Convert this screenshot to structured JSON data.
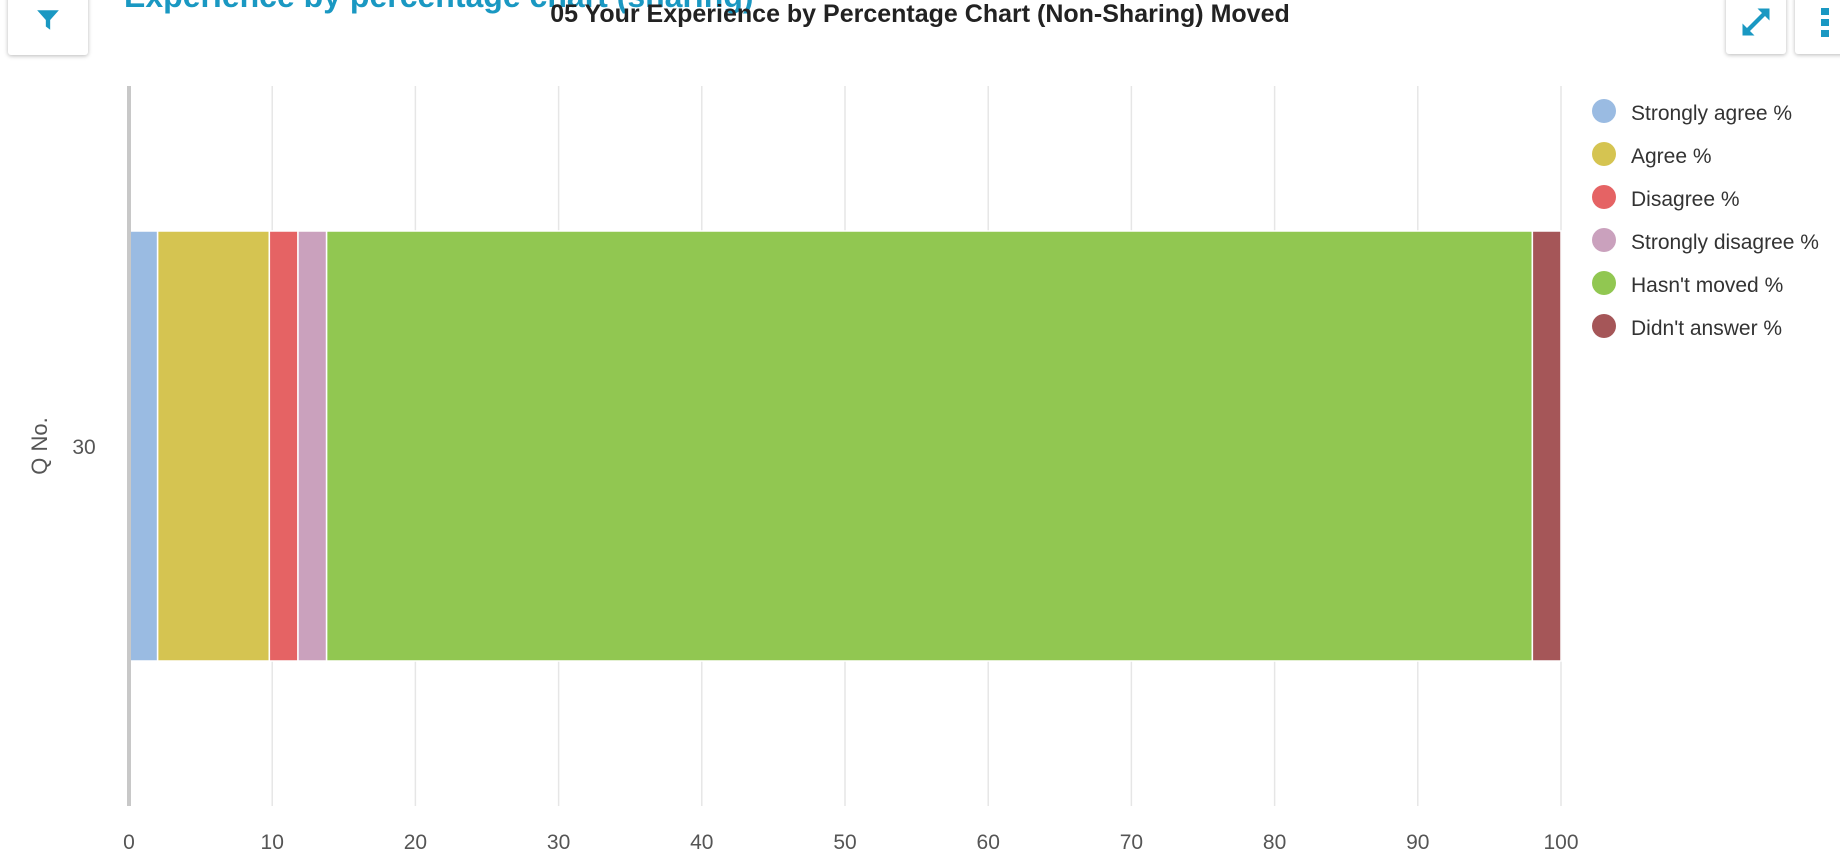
{
  "header": {
    "background_title": "Experience by percentage chart (sharing)",
    "chart_title": "05 Your Experience by Percentage Chart (Non-Sharing) Moved"
  },
  "icons": {
    "filter": "filter-icon",
    "expand": "expand-icon",
    "more": "more-vertical-icon"
  },
  "colors": {
    "accent": "#1a98c2"
  },
  "chart_data": {
    "type": "bar",
    "orientation": "horizontal",
    "stacked": true,
    "title": "05 Your Experience by Percentage Chart (Non-Sharing) Moved",
    "xlabel": "",
    "ylabel": "Q No.",
    "categories": [
      "30"
    ],
    "xlim": [
      0,
      100
    ],
    "xticks": [
      0,
      10,
      20,
      30,
      40,
      50,
      60,
      70,
      80,
      90,
      100
    ],
    "grid": true,
    "legend_position": "top-right",
    "series": [
      {
        "name": "Strongly agree %",
        "color": "#9abbe2",
        "values": [
          2.0
        ]
      },
      {
        "name": "Agree %",
        "color": "#d5c451",
        "values": [
          7.8
        ]
      },
      {
        "name": "Disagree %",
        "color": "#e56364",
        "values": [
          2.0
        ]
      },
      {
        "name": "Strongly disagree %",
        "color": "#caa1bd",
        "values": [
          2.0
        ]
      },
      {
        "name": "Hasn't moved %",
        "color": "#91c751",
        "values": [
          84.2
        ]
      },
      {
        "name": "Didn't answer %",
        "color": "#a55658",
        "values": [
          2.0
        ]
      }
    ]
  }
}
